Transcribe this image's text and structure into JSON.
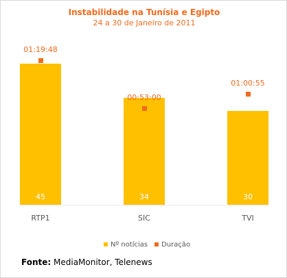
{
  "chart_data": {
    "type": "bar",
    "title": "Instabilidade na Tunísia e Egipto",
    "subtitle": "24 a 30 de Janeiro de 2011",
    "categories": [
      "RTP1",
      "SIC",
      "TVI"
    ],
    "series": [
      {
        "name": "Nº notícias",
        "type": "bar",
        "values": [
          45,
          34,
          30
        ],
        "color": "#ffc000"
      },
      {
        "name": "Duração",
        "type": "scatter",
        "values": [
          "01:19:48",
          "00:53:00",
          "01:00:55"
        ],
        "seconds": [
          4788,
          3180,
          3655
        ],
        "color": "#f26b1d"
      }
    ],
    "ylim": [
      0,
      52
    ],
    "grid": false,
    "legend": "bottom"
  },
  "source": {
    "label": "Fonte:",
    "text": "MediaMonitor, Telenews"
  }
}
